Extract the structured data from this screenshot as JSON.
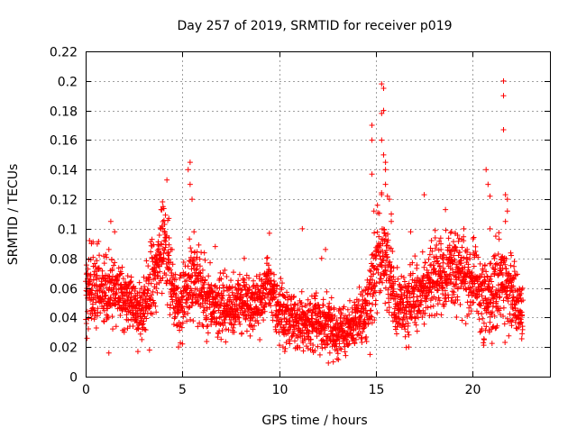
{
  "chart_data": {
    "type": "scatter",
    "title": "Day 257 of 2019, SRMTID for receiver p019",
    "xlabel": "GPS time / hours",
    "ylabel": "SRMTID / TECUs",
    "xlim": [
      0,
      24
    ],
    "ylim": [
      0,
      0.22
    ],
    "x_ticks": [
      0,
      5,
      10,
      15,
      20
    ],
    "x_tick_labels": [
      "0",
      "5",
      "10",
      "15",
      "20"
    ],
    "y_ticks": [
      0,
      0.02,
      0.04,
      0.06,
      0.08,
      0.1,
      0.12,
      0.14,
      0.16,
      0.18,
      0.2,
      0.22
    ],
    "y_tick_labels": [
      "0",
      "0.02",
      "0.04",
      "0.06",
      "0.08",
      "0.1",
      "0.12",
      "0.14",
      "0.16",
      "0.18",
      "0.2",
      "0.22"
    ],
    "grid": true,
    "marker": "plus",
    "series_color": "#ff0000",
    "x_data_range": [
      0,
      22.6
    ],
    "envelope": [
      [
        0,
        0.056,
        0.012
      ],
      [
        0.5,
        0.06,
        0.012
      ],
      [
        1.0,
        0.062,
        0.011
      ],
      [
        1.5,
        0.056,
        0.011
      ],
      [
        2.0,
        0.054,
        0.011
      ],
      [
        2.5,
        0.048,
        0.01
      ],
      [
        3.0,
        0.043,
        0.01
      ],
      [
        3.5,
        0.07,
        0.015
      ],
      [
        4.0,
        0.085,
        0.015
      ],
      [
        4.3,
        0.075,
        0.015
      ],
      [
        4.6,
        0.052,
        0.01
      ],
      [
        5.0,
        0.05,
        0.011
      ],
      [
        5.5,
        0.072,
        0.015
      ],
      [
        6.0,
        0.055,
        0.012
      ],
      [
        6.5,
        0.052,
        0.01
      ],
      [
        7.0,
        0.048,
        0.01
      ],
      [
        7.5,
        0.046,
        0.01
      ],
      [
        8.0,
        0.05,
        0.01
      ],
      [
        8.5,
        0.048,
        0.01
      ],
      [
        9.0,
        0.052,
        0.01
      ],
      [
        9.5,
        0.062,
        0.012
      ],
      [
        10.0,
        0.045,
        0.01
      ],
      [
        10.5,
        0.04,
        0.009
      ],
      [
        11.0,
        0.037,
        0.009
      ],
      [
        11.5,
        0.035,
        0.009
      ],
      [
        12.0,
        0.04,
        0.009
      ],
      [
        12.5,
        0.036,
        0.009
      ],
      [
        13.0,
        0.03,
        0.008
      ],
      [
        13.5,
        0.032,
        0.008
      ],
      [
        14.0,
        0.038,
        0.009
      ],
      [
        14.5,
        0.045,
        0.01
      ],
      [
        15.0,
        0.075,
        0.015
      ],
      [
        15.3,
        0.09,
        0.018
      ],
      [
        15.6,
        0.075,
        0.015
      ],
      [
        16.0,
        0.05,
        0.01
      ],
      [
        16.5,
        0.045,
        0.01
      ],
      [
        17.0,
        0.055,
        0.012
      ],
      [
        17.5,
        0.06,
        0.012
      ],
      [
        18.0,
        0.065,
        0.013
      ],
      [
        18.5,
        0.07,
        0.013
      ],
      [
        19.0,
        0.075,
        0.013
      ],
      [
        19.5,
        0.07,
        0.013
      ],
      [
        20.0,
        0.065,
        0.012
      ],
      [
        20.5,
        0.055,
        0.012
      ],
      [
        21.0,
        0.05,
        0.012
      ],
      [
        21.5,
        0.07,
        0.015
      ],
      [
        22.0,
        0.055,
        0.012
      ],
      [
        22.6,
        0.045,
        0.01
      ]
    ],
    "outliers": [
      [
        0.3,
        0.09
      ],
      [
        1.3,
        0.105
      ],
      [
        1.5,
        0.098
      ],
      [
        3.9,
        0.113
      ],
      [
        4.0,
        0.115
      ],
      [
        4.2,
        0.133
      ],
      [
        4.3,
        0.107
      ],
      [
        5.3,
        0.14
      ],
      [
        5.4,
        0.145
      ],
      [
        5.4,
        0.13
      ],
      [
        5.5,
        0.12
      ],
      [
        5.6,
        0.098
      ],
      [
        6.7,
        0.088
      ],
      [
        9.5,
        0.097
      ],
      [
        11.2,
        0.1
      ],
      [
        12.4,
        0.086
      ],
      [
        14.8,
        0.17
      ],
      [
        14.8,
        0.16
      ],
      [
        14.8,
        0.137
      ],
      [
        14.9,
        0.112
      ],
      [
        15.3,
        0.198
      ],
      [
        15.4,
        0.195
      ],
      [
        15.4,
        0.18
      ],
      [
        15.3,
        0.178
      ],
      [
        15.3,
        0.16
      ],
      [
        15.4,
        0.15
      ],
      [
        15.5,
        0.145
      ],
      [
        15.5,
        0.14
      ],
      [
        15.5,
        0.13
      ],
      [
        15.6,
        0.122
      ],
      [
        15.7,
        0.12
      ],
      [
        15.8,
        0.11
      ],
      [
        15.8,
        0.105
      ],
      [
        17.5,
        0.123
      ],
      [
        20.7,
        0.14
      ],
      [
        20.8,
        0.13
      ],
      [
        20.9,
        0.122
      ],
      [
        20.9,
        0.1
      ],
      [
        21.2,
        0.095
      ],
      [
        21.6,
        0.2
      ],
      [
        21.6,
        0.19
      ],
      [
        21.6,
        0.167
      ],
      [
        21.7,
        0.123
      ],
      [
        21.8,
        0.12
      ],
      [
        21.8,
        0.112
      ],
      [
        21.7,
        0.105
      ],
      [
        0.2,
        0.092
      ],
      [
        1.2,
        0.086
      ],
      [
        8.2,
        0.08
      ],
      [
        12.2,
        0.08
      ],
      [
        16.8,
        0.098
      ],
      [
        18.6,
        0.113
      ],
      [
        19.1,
        0.097
      ],
      [
        22.0,
        0.082
      ],
      [
        1.2,
        0.016
      ],
      [
        2.7,
        0.017
      ],
      [
        3.3,
        0.018
      ],
      [
        12.8,
        0.01
      ],
      [
        13.0,
        0.012
      ],
      [
        14.7,
        0.015
      ],
      [
        16.7,
        0.02
      ],
      [
        20.6,
        0.025
      ],
      [
        4.8,
        0.02
      ],
      [
        9.0,
        0.025
      ],
      [
        10.2,
        0.02
      ],
      [
        11.5,
        0.019
      ]
    ]
  }
}
